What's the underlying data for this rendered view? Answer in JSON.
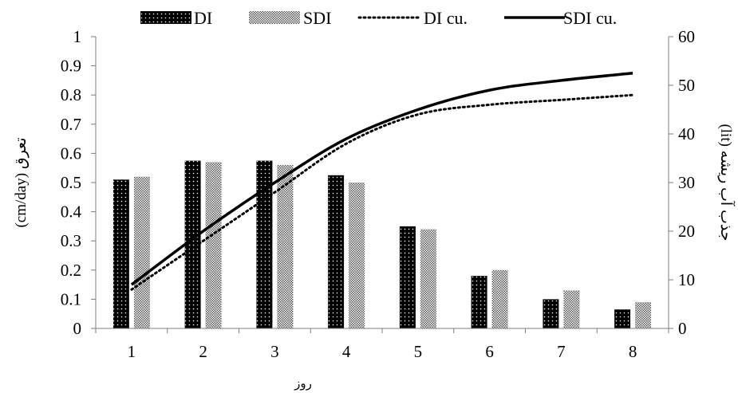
{
  "chart_data": {
    "type": "bar",
    "categories": [
      "1",
      "2",
      "3",
      "4",
      "5",
      "6",
      "7",
      "8"
    ],
    "series": [
      {
        "name": "DI",
        "kind": "bar",
        "axis": "left",
        "pattern": "dots-on-black",
        "values": [
          0.51,
          0.575,
          0.575,
          0.525,
          0.35,
          0.18,
          0.1,
          0.065
        ]
      },
      {
        "name": "SDI",
        "kind": "bar",
        "axis": "left",
        "pattern": "checker-gray",
        "values": [
          0.52,
          0.57,
          0.56,
          0.5,
          0.34,
          0.2,
          0.13,
          0.09
        ]
      },
      {
        "name": "DI cu.",
        "kind": "line",
        "axis": "right",
        "style": "dotted",
        "values": [
          8,
          18,
          28,
          38,
          44,
          46,
          47,
          48
        ]
      },
      {
        "name": "SDI cu.",
        "kind": "line",
        "axis": "right",
        "style": "solid",
        "values": [
          9,
          20,
          30,
          39,
          45,
          49,
          51,
          52.5
        ]
      }
    ],
    "y_left": {
      "label": "تعرق (cm/day)",
      "ylim": [
        0,
        1
      ],
      "ticks": [
        "0",
        "0.1",
        "0.2",
        "0.3",
        "0.4",
        "0.5",
        "0.6",
        "0.7",
        "0.8",
        "0.9",
        "1"
      ]
    },
    "y_right": {
      "label": "جذب آب ریشه (lit)",
      "ylim": [
        0,
        60
      ],
      "ticks": [
        "0",
        "10",
        "20",
        "30",
        "40",
        "50",
        "60"
      ]
    },
    "xlabel": "روز",
    "legend_position": "top",
    "grid": false,
    "colors": {
      "axis": "#7f7f7f",
      "bar_dark": "#000000",
      "bar_light": "#8c8c8c",
      "line": "#000000"
    }
  }
}
